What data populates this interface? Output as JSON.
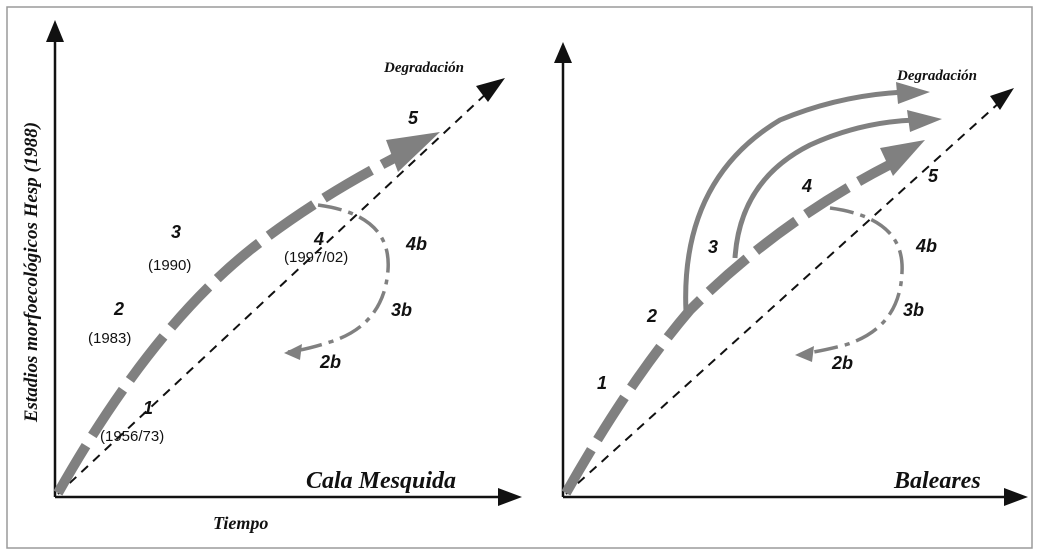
{
  "y_axis_label": "Estadios morfoecológicos Hesp (1988)",
  "x_axis_label": "Tiempo",
  "colors": {
    "trajectory": "#808080",
    "axis": "#111111",
    "frame": "#9a9a9a",
    "text": "#111111"
  },
  "panel_left": {
    "title": "Cala Mesquida",
    "degradation_label": "Degradación",
    "stages": [
      {
        "num": "1",
        "year": "(1956/73)"
      },
      {
        "num": "2",
        "year": "(1983)"
      },
      {
        "num": "3",
        "year": "(1990)"
      },
      {
        "num": "4",
        "year": "(1997/02)"
      },
      {
        "num": "5",
        "year": ""
      }
    ],
    "recovery": [
      "4b",
      "3b",
      "2b"
    ]
  },
  "panel_right": {
    "title": "Baleares",
    "degradation_label": "Degradación",
    "stages": [
      "1",
      "2",
      "3",
      "4",
      "5"
    ],
    "recovery": [
      "4b",
      "3b",
      "2b"
    ]
  }
}
